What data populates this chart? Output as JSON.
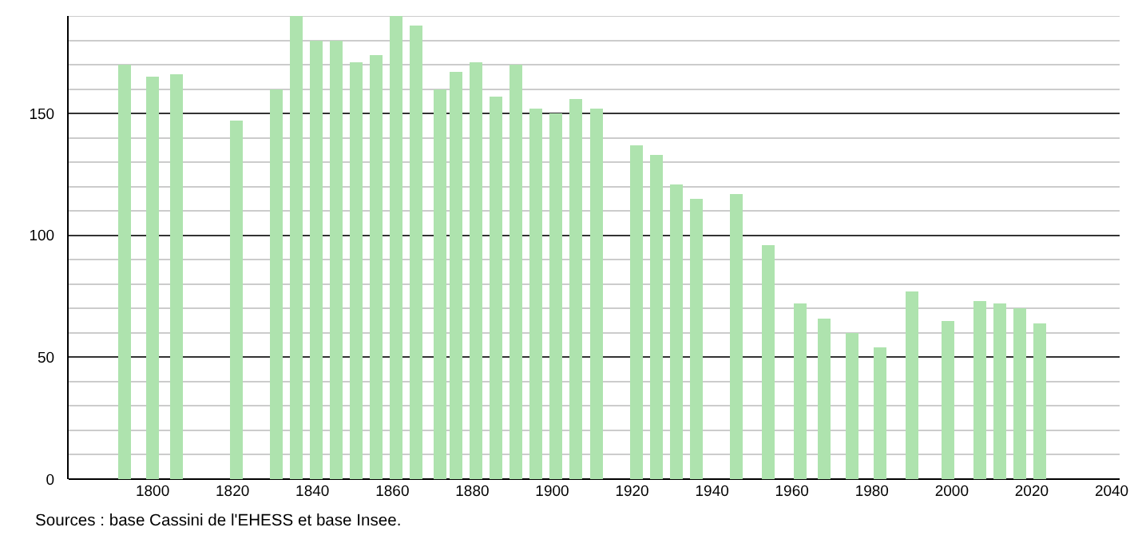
{
  "chart_data": {
    "type": "bar",
    "x": [
      1793,
      1800,
      1806,
      1821,
      1831,
      1836,
      1841,
      1846,
      1851,
      1856,
      1861,
      1866,
      1872,
      1876,
      1881,
      1886,
      1891,
      1896,
      1901,
      1906,
      1911,
      1921,
      1926,
      1931,
      1936,
      1946,
      1954,
      1962,
      1968,
      1975,
      1982,
      1990,
      1999,
      2007,
      2012,
      2017,
      2022
    ],
    "values": [
      170,
      165,
      166,
      147,
      160,
      190,
      180,
      180,
      171,
      174,
      190,
      186,
      160,
      167,
      171,
      157,
      170,
      152,
      150,
      156,
      152,
      137,
      133,
      121,
      115,
      117,
      96,
      72,
      66,
      60,
      54,
      77,
      65,
      73,
      72,
      70,
      64
    ],
    "color": "#aee3ae",
    "xlim": [
      1779,
      2042
    ],
    "xticks": [
      1800,
      1820,
      1840,
      1860,
      1880,
      1900,
      1920,
      1940,
      1960,
      1980,
      2000,
      2020,
      2040
    ],
    "ylim": [
      0,
      190
    ],
    "yticks": [
      0,
      {
        "value": 10,
        "label": null
      },
      {
        "value": 20,
        "label": null
      },
      {
        "value": 30,
        "label": null
      },
      {
        "value": 40,
        "label": null
      },
      50,
      {
        "value": 60,
        "label": null
      },
      {
        "value": 70,
        "label": null
      },
      {
        "value": 80,
        "label": null
      },
      {
        "value": 90,
        "label": null
      },
      100,
      {
        "value": 110,
        "label": null
      },
      {
        "value": 120,
        "label": null
      },
      {
        "value": 130,
        "label": null
      },
      {
        "value": 140,
        "label": null
      },
      150,
      {
        "value": 160,
        "label": null
      },
      {
        "value": 170,
        "label": null
      },
      {
        "value": 180,
        "label": null
      },
      {
        "value": 190,
        "label": null
      }
    ],
    "grid": "y",
    "annotations": [
      "Sources : base Cassini de l'EHESS et base Insee."
    ]
  }
}
